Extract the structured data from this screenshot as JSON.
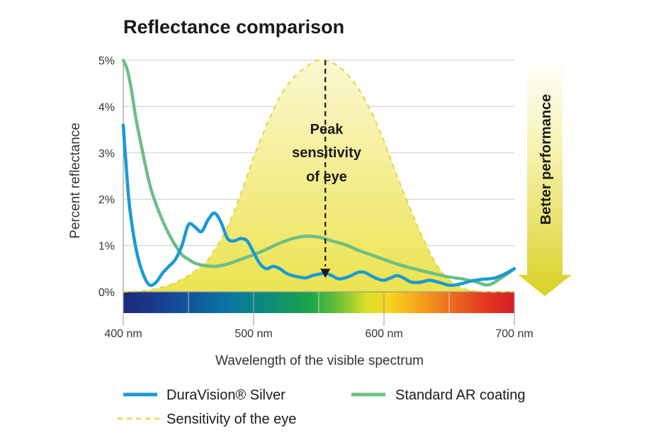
{
  "chart_data": {
    "type": "line",
    "title": "Reflectance comparison",
    "xlabel": "Wavelength of the visible spectrum",
    "ylabel": "Percent reflectance",
    "xlim": [
      400,
      700
    ],
    "ylim": [
      0,
      5
    ],
    "x_ticks": [
      {
        "value": 400,
        "label": "400 nm"
      },
      {
        "value": 500,
        "label": "500 nm"
      },
      {
        "value": 600,
        "label": "600 nm"
      },
      {
        "value": 700,
        "label": "700 nm"
      }
    ],
    "y_ticks": [
      {
        "value": 0,
        "label": "0%"
      },
      {
        "value": 1,
        "label": "1%"
      },
      {
        "value": 2,
        "label": "2%"
      },
      {
        "value": 3,
        "label": "3%"
      },
      {
        "value": 4,
        "label": "4%"
      },
      {
        "value": 5,
        "label": "5%"
      }
    ],
    "grid": true,
    "series": [
      {
        "name": "DuraVision® Silver",
        "style": "solid",
        "color": "#1a9ad6",
        "points": [
          [
            400,
            3.6
          ],
          [
            402,
            2.8
          ],
          [
            405,
            1.8
          ],
          [
            410,
            0.9
          ],
          [
            415,
            0.4
          ],
          [
            420,
            0.15
          ],
          [
            425,
            0.2
          ],
          [
            430,
            0.4
          ],
          [
            435,
            0.55
          ],
          [
            440,
            0.7
          ],
          [
            445,
            1.0
          ],
          [
            450,
            1.45
          ],
          [
            455,
            1.4
          ],
          [
            460,
            1.3
          ],
          [
            465,
            1.55
          ],
          [
            470,
            1.7
          ],
          [
            475,
            1.5
          ],
          [
            480,
            1.15
          ],
          [
            485,
            1.1
          ],
          [
            490,
            1.15
          ],
          [
            495,
            1.1
          ],
          [
            500,
            0.85
          ],
          [
            505,
            0.6
          ],
          [
            510,
            0.5
          ],
          [
            515,
            0.55
          ],
          [
            520,
            0.5
          ],
          [
            525,
            0.4
          ],
          [
            530,
            0.35
          ],
          [
            535,
            0.32
          ],
          [
            540,
            0.3
          ],
          [
            545,
            0.35
          ],
          [
            550,
            0.38
          ],
          [
            555,
            0.4
          ],
          [
            560,
            0.35
          ],
          [
            565,
            0.28
          ],
          [
            570,
            0.3
          ],
          [
            575,
            0.35
          ],
          [
            580,
            0.42
          ],
          [
            585,
            0.42
          ],
          [
            590,
            0.35
          ],
          [
            595,
            0.28
          ],
          [
            600,
            0.25
          ],
          [
            605,
            0.3
          ],
          [
            610,
            0.35
          ],
          [
            615,
            0.3
          ],
          [
            620,
            0.22
          ],
          [
            625,
            0.2
          ],
          [
            630,
            0.22
          ],
          [
            635,
            0.25
          ],
          [
            640,
            0.22
          ],
          [
            645,
            0.18
          ],
          [
            650,
            0.14
          ],
          [
            655,
            0.15
          ],
          [
            660,
            0.18
          ],
          [
            665,
            0.22
          ],
          [
            670,
            0.25
          ],
          [
            675,
            0.27
          ],
          [
            680,
            0.28
          ],
          [
            685,
            0.3
          ],
          [
            690,
            0.35
          ],
          [
            695,
            0.42
          ],
          [
            700,
            0.5
          ]
        ]
      },
      {
        "name": "Standard AR coating",
        "style": "solid",
        "color": "#6dbf85",
        "points": [
          [
            400,
            5.0
          ],
          [
            403,
            4.8
          ],
          [
            406,
            4.4
          ],
          [
            410,
            3.7
          ],
          [
            415,
            3.0
          ],
          [
            420,
            2.35
          ],
          [
            425,
            1.9
          ],
          [
            430,
            1.55
          ],
          [
            435,
            1.25
          ],
          [
            440,
            1.0
          ],
          [
            445,
            0.8
          ],
          [
            450,
            0.7
          ],
          [
            455,
            0.62
          ],
          [
            460,
            0.58
          ],
          [
            470,
            0.55
          ],
          [
            480,
            0.6
          ],
          [
            490,
            0.7
          ],
          [
            500,
            0.8
          ],
          [
            510,
            0.92
          ],
          [
            520,
            1.05
          ],
          [
            530,
            1.15
          ],
          [
            540,
            1.2
          ],
          [
            550,
            1.18
          ],
          [
            560,
            1.1
          ],
          [
            570,
            1.02
          ],
          [
            580,
            0.9
          ],
          [
            590,
            0.8
          ],
          [
            600,
            0.7
          ],
          [
            610,
            0.6
          ],
          [
            620,
            0.52
          ],
          [
            630,
            0.45
          ],
          [
            640,
            0.38
          ],
          [
            650,
            0.32
          ],
          [
            660,
            0.28
          ],
          [
            670,
            0.22
          ],
          [
            680,
            0.15
          ],
          [
            690,
            0.3
          ],
          [
            700,
            0.5
          ]
        ]
      },
      {
        "name": "Sensitivity of the eye",
        "style": "dashed",
        "color": "#e6da4a",
        "points": [
          [
            400,
            0.0
          ],
          [
            420,
            0.04
          ],
          [
            440,
            0.2
          ],
          [
            460,
            0.55
          ],
          [
            470,
            0.9
          ],
          [
            480,
            1.4
          ],
          [
            490,
            2.1
          ],
          [
            500,
            2.9
          ],
          [
            510,
            3.6
          ],
          [
            520,
            4.2
          ],
          [
            530,
            4.6
          ],
          [
            540,
            4.85
          ],
          [
            550,
            5.0
          ],
          [
            560,
            4.95
          ],
          [
            570,
            4.75
          ],
          [
            580,
            4.4
          ],
          [
            590,
            3.9
          ],
          [
            600,
            3.25
          ],
          [
            610,
            2.5
          ],
          [
            620,
            1.8
          ],
          [
            630,
            1.15
          ],
          [
            640,
            0.6
          ],
          [
            650,
            0.25
          ],
          [
            660,
            0.08
          ],
          [
            670,
            0.02
          ],
          [
            680,
            0.0
          ],
          [
            700,
            0.0
          ]
        ]
      }
    ],
    "annotations": {
      "peak_lines": [
        "Peak",
        "sensitivity",
        "of eye"
      ],
      "peak_wavelength": 555,
      "better_performance": "Better performance"
    },
    "legend": {
      "placement": "bottom",
      "entries": [
        {
          "label": "DuraVision® Silver",
          "color": "#1a9ad6",
          "style": "solid"
        },
        {
          "label": "Standard AR coating",
          "color": "#6dbf85",
          "style": "solid"
        },
        {
          "label": "Sensitivity of the eye",
          "color": "#e6da4a",
          "style": "dashed"
        }
      ]
    },
    "colors": {
      "grid": "#cccccc",
      "axis": "#999999",
      "area_fill": "#f3ef8a",
      "arrow_top": "#fbf8cf",
      "arrow_bottom": "#dcd42e"
    }
  }
}
